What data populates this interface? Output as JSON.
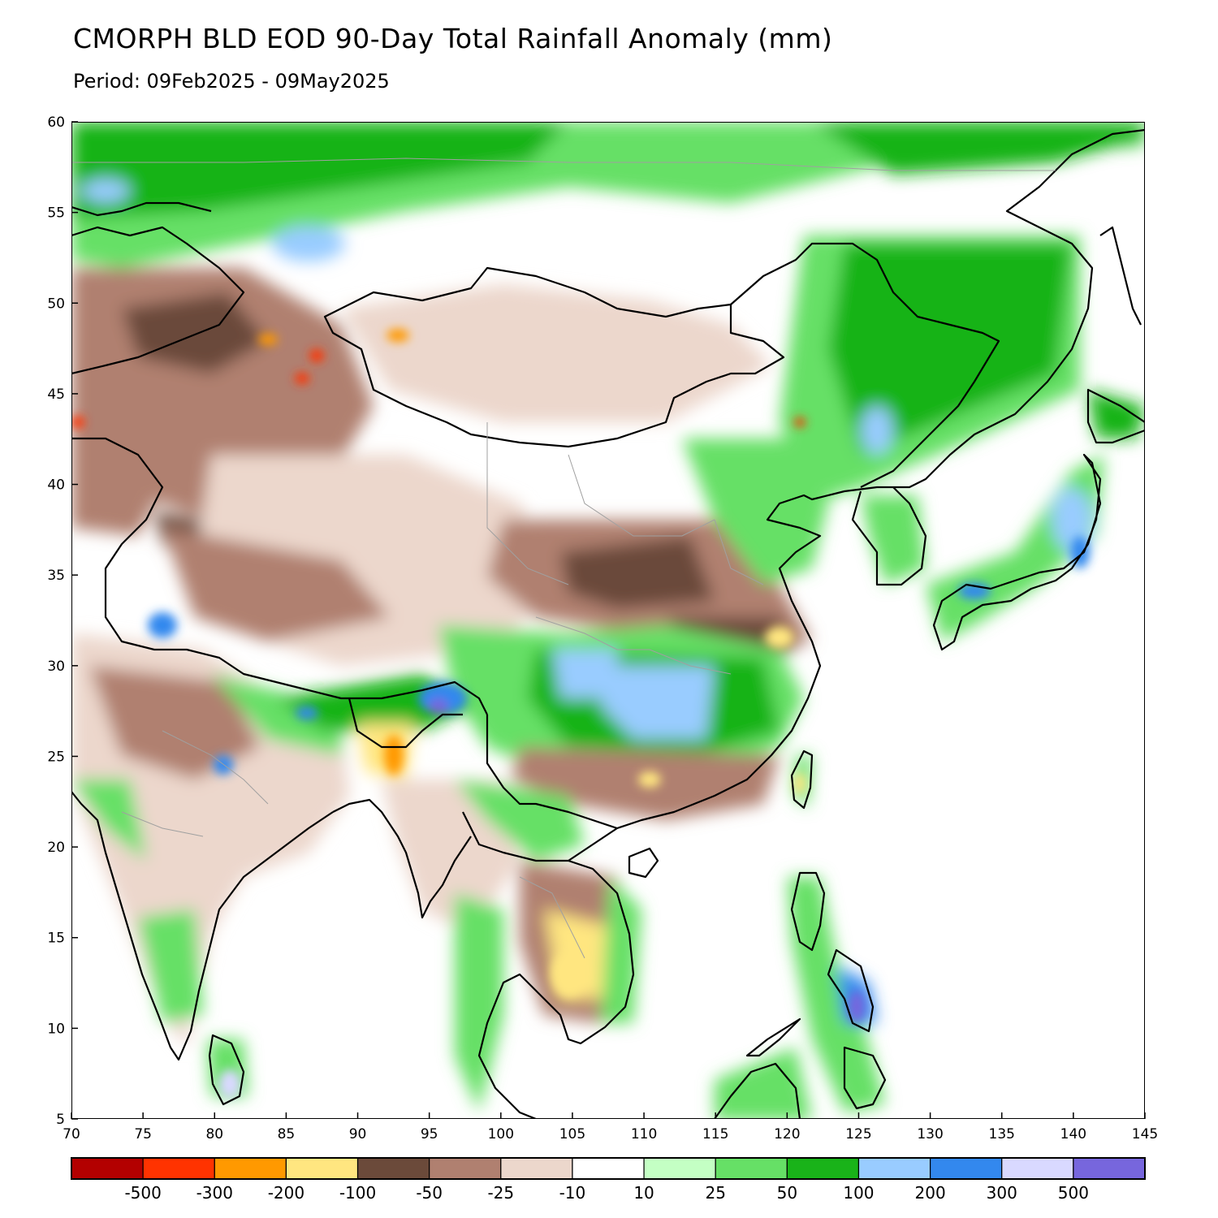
{
  "title": "CMORPH BLD EOD 90-Day Total Rainfall Anomaly (mm)",
  "subtitle": "Period: 09Feb2025 - 09May2025",
  "map": {
    "lon_range": [
      70,
      145
    ],
    "lat_range": [
      5,
      60
    ],
    "x_ticks": [
      "70",
      "75",
      "80",
      "85",
      "90",
      "95",
      "100",
      "105",
      "110",
      "115",
      "120",
      "125",
      "130",
      "135",
      "140",
      "145"
    ],
    "y_ticks": [
      "60",
      "55",
      "50",
      "45",
      "40",
      "35",
      "30",
      "25",
      "20",
      "15",
      "10",
      "5"
    ]
  },
  "colorbar": {
    "colors": [
      "#b30000",
      "#ff3300",
      "#ff9900",
      "#ffe680",
      "#6b4a3a",
      "#b08070",
      "#ecd7cc",
      "#ffffff",
      "#c4ffc4",
      "#66e066",
      "#19b319",
      "#99ccff",
      "#3388ee",
      "#d9d9ff",
      "#7766dd"
    ],
    "labels": [
      "-500",
      "-300",
      "-200",
      "-100",
      "-50",
      "-25",
      "-10",
      "10",
      "25",
      "50",
      "100",
      "200",
      "300",
      "500"
    ]
  }
}
